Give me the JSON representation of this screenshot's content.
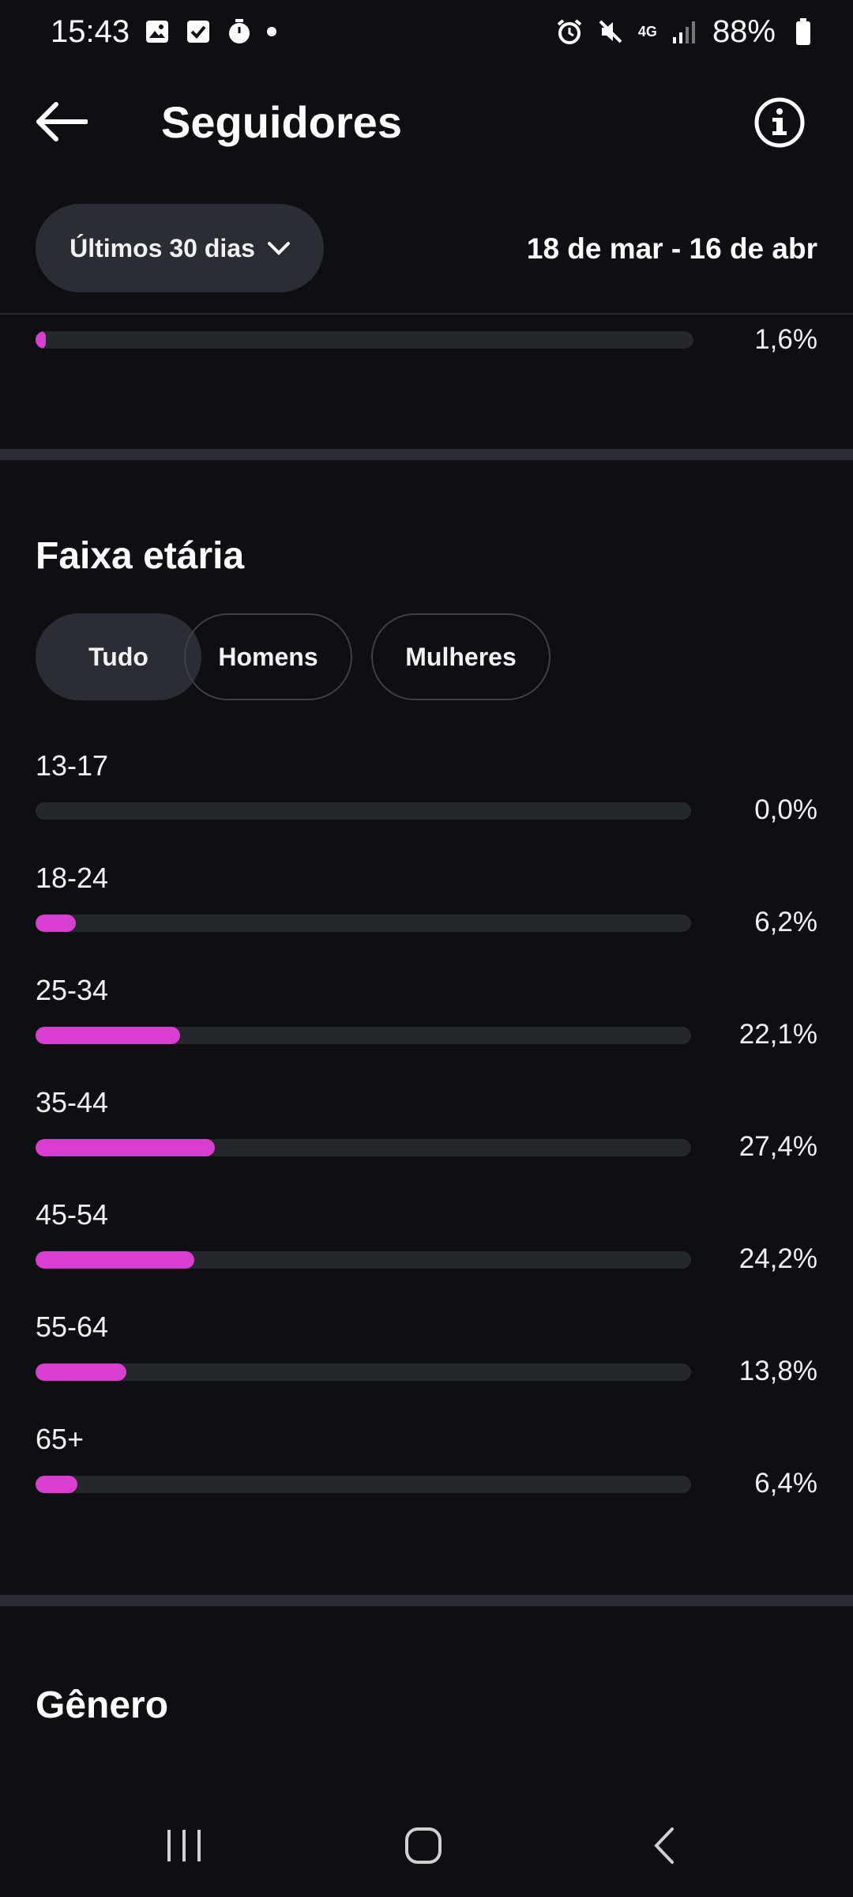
{
  "status_bar": {
    "time": "15:43",
    "left_icons": [
      "image-icon",
      "checkbox-icon",
      "timer-icon"
    ],
    "network": "4G",
    "battery": "88%"
  },
  "header": {
    "title": "Seguidores"
  },
  "filters": {
    "range_label": "Últimos 30 dias",
    "date_range": "18 de mar - 16 de abr"
  },
  "previous_section": {
    "value_fraction": 0.016,
    "value_label": "1,6%"
  },
  "age_section": {
    "title": "Faixa etária",
    "chips": [
      {
        "label": "Tudo",
        "selected": true
      },
      {
        "label": "Homens",
        "selected": false
      },
      {
        "label": "Mulheres",
        "selected": false
      }
    ],
    "groups": [
      {
        "label": "13-17",
        "value": 0.0,
        "value_label": "0,0%"
      },
      {
        "label": "18-24",
        "value": 6.2,
        "value_label": "6,2%"
      },
      {
        "label": "25-34",
        "value": 22.1,
        "value_label": "22,1%"
      },
      {
        "label": "35-44",
        "value": 27.4,
        "value_label": "27,4%"
      },
      {
        "label": "45-54",
        "value": 24.2,
        "value_label": "24,2%"
      },
      {
        "label": "55-64",
        "value": 13.8,
        "value_label": "13,8%"
      },
      {
        "label": "65+",
        "value": 6.4,
        "value_label": "6,4%"
      }
    ],
    "scale_max": 100
  },
  "gender_section": {
    "title": "Gênero"
  },
  "colors": {
    "background": "#0d0f13",
    "accent": "#d93ed1",
    "track": "#24272c",
    "chip_bg": "#2a2d33"
  }
}
